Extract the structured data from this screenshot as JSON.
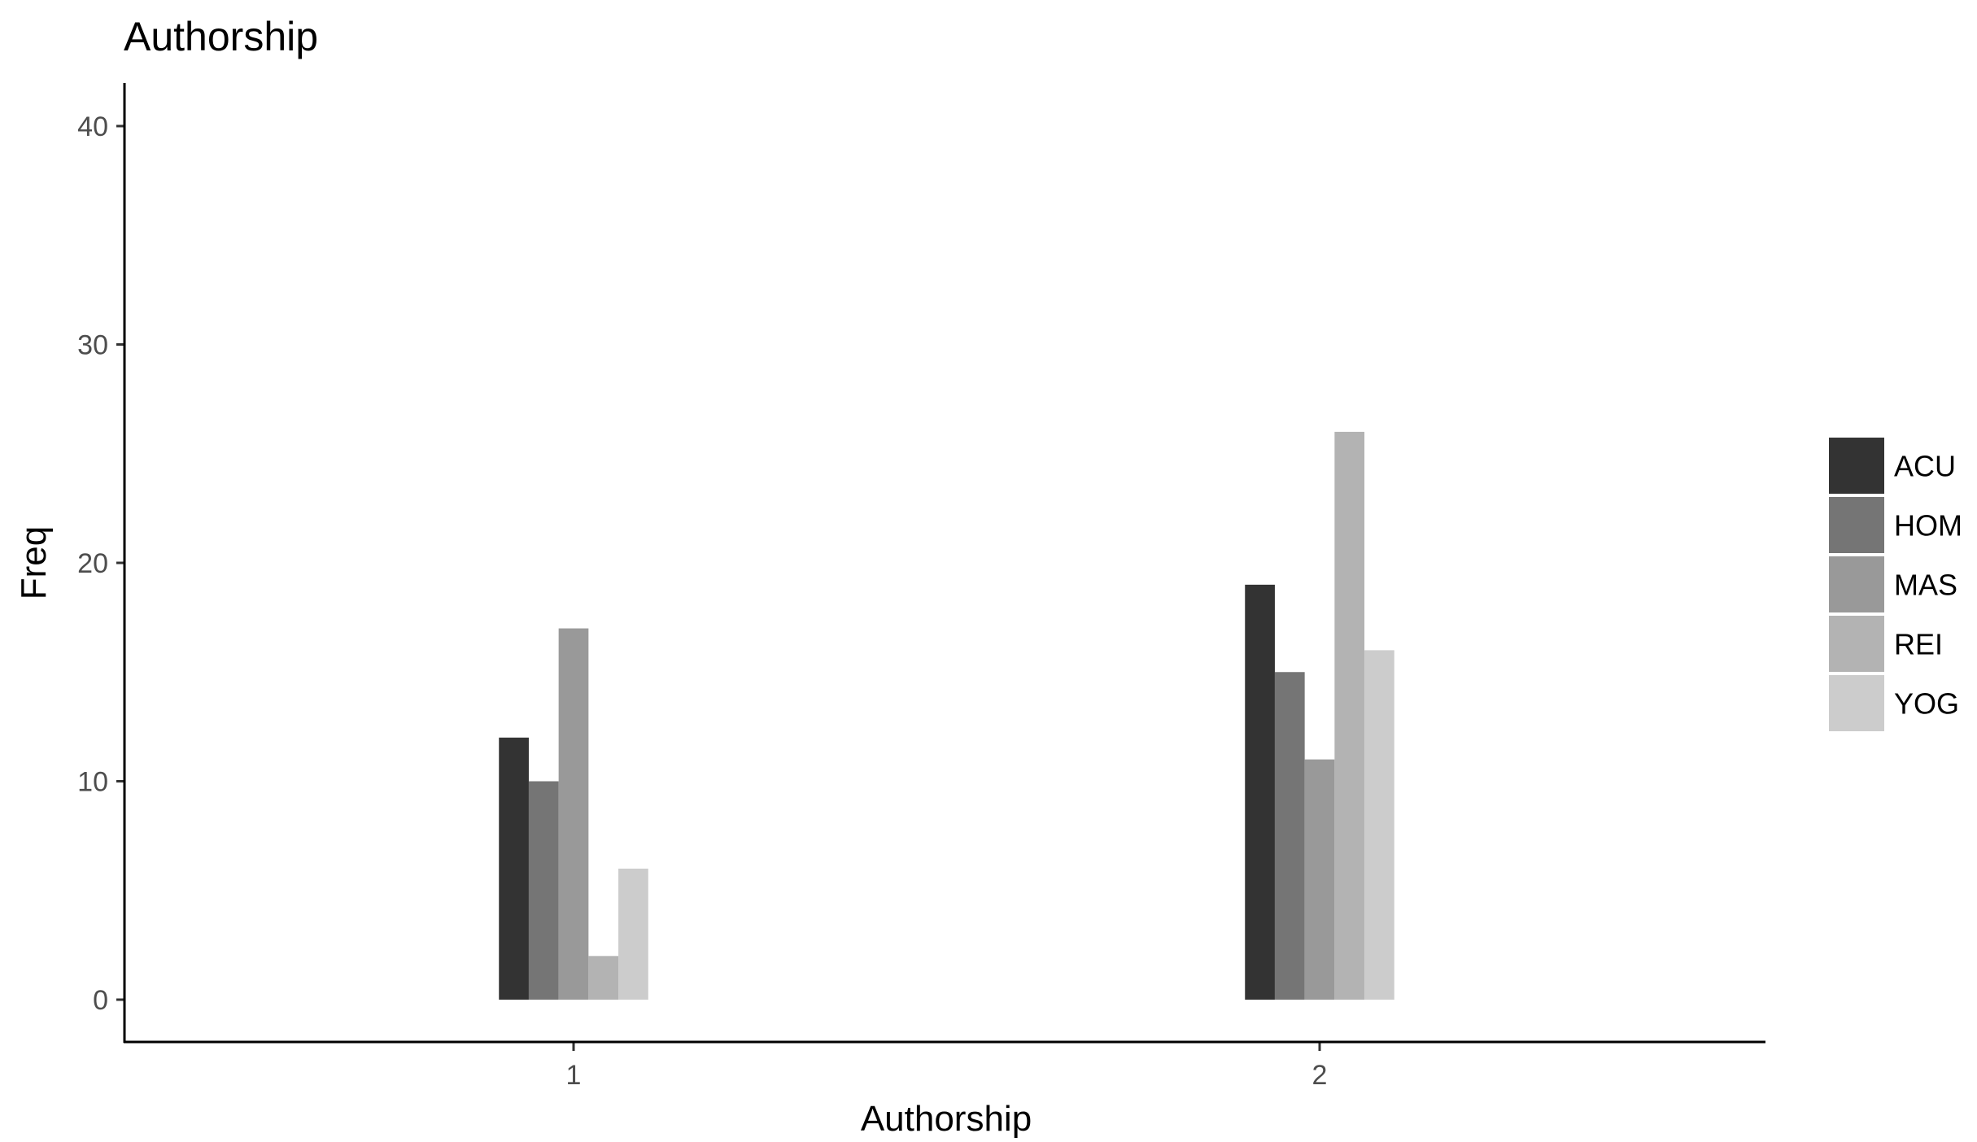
{
  "chart_data": {
    "type": "bar",
    "title": "Authorship",
    "xlabel": "Authorship",
    "ylabel": "Freq",
    "categories": [
      "1",
      "2"
    ],
    "series": [
      {
        "name": "ACU",
        "values": [
          12,
          19
        ],
        "color": "#333333"
      },
      {
        "name": "HOM",
        "values": [
          10,
          15
        ],
        "color": "#757575"
      },
      {
        "name": "MAS",
        "values": [
          17,
          11
        ],
        "color": "#999999"
      },
      {
        "name": "REI",
        "values": [
          2,
          26
        ],
        "color": "#b3b3b3"
      },
      {
        "name": "YOG",
        "values": [
          6,
          16
        ],
        "color": "#cccccc"
      }
    ],
    "y_ticks": [
      0,
      10,
      20,
      30,
      40
    ],
    "ylim": [
      -1.9,
      42
    ],
    "grid": false,
    "legend_position": "right"
  }
}
